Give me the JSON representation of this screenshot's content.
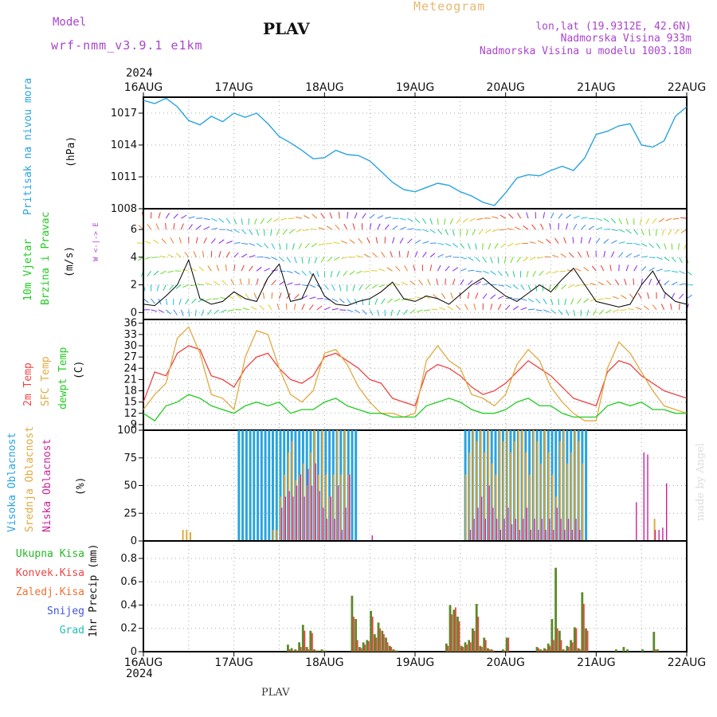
{
  "header": {
    "model_label": "Model",
    "model_name": "wrf-nmm_v3.9.1  e1km",
    "station": "PLAV",
    "title": "Meteogram",
    "lonlat": "lon,lat (19.9312E, 42.6N)",
    "elevation": "Nadmorska Visina 933m",
    "model_elevation": "Nadmorska Visina u modelu 1003.18m",
    "footer_station": "PLAV",
    "credit": "made by Angel"
  },
  "colors": {
    "pressure": "#29a3e0",
    "wind_label": "#22cc22",
    "wind_axis": "#aa44cc",
    "temp2m": "#ee4444",
    "sfc": "#e0aa40",
    "dewpt": "#22cc22",
    "high_cloud": "#29a3e0",
    "mid_cloud": "#e0aa40",
    "low_cloud": "#cc2299",
    "total_rain": "#22bb22",
    "conv_rain": "#ee4444",
    "frozen": "#f07030",
    "snow": "#4455dd",
    "hail": "#22bbbb"
  },
  "chart_data": [
    {
      "type": "line",
      "panel": "pressure",
      "ylabel": "Pritisak na nivou mora",
      "unit": "(hPa)",
      "ylim": [
        1008,
        1018.5
      ],
      "yticks": [
        "1008",
        "1011",
        "1014",
        "1017"
      ],
      "xlim": [
        "2024-08-16 00:00",
        "2024-08-22 00:00"
      ],
      "x_top_labels": [
        "16AUG",
        "17AUG",
        "18AUG",
        "19AUG",
        "20AUG",
        "21AUG",
        "22AUG"
      ],
      "year_label": "2024",
      "x_hours": [
        0,
        3,
        6,
        9,
        12,
        15,
        18,
        21,
        24,
        27,
        30,
        33,
        36,
        39,
        42,
        45,
        48,
        51,
        54,
        57,
        60,
        63,
        66,
        69,
        72,
        75,
        78,
        81,
        84,
        87,
        90,
        93,
        96,
        99,
        102,
        105,
        108,
        111,
        114,
        117,
        120,
        123,
        126,
        129,
        132,
        135,
        138,
        141,
        144
      ],
      "values": [
        1018.2,
        1017.9,
        1018.4,
        1017.6,
        1016.3,
        1015.9,
        1016.7,
        1016.2,
        1017.0,
        1016.6,
        1017.0,
        1016.0,
        1014.8,
        1014.2,
        1013.5,
        1012.7,
        1012.8,
        1013.5,
        1013.1,
        1013.0,
        1012.5,
        1011.5,
        1010.5,
        1009.8,
        1009.6,
        1010.0,
        1010.4,
        1010.2,
        1009.6,
        1009.2,
        1008.6,
        1008.3,
        1009.5,
        1010.9,
        1011.2,
        1011.1,
        1011.6,
        1012.0,
        1011.6,
        1012.8,
        1015.0,
        1015.3,
        1015.8,
        1016.0,
        1014.0,
        1013.8,
        1014.4,
        1016.7,
        1017.6
      ]
    },
    {
      "type": "line",
      "panel": "wind",
      "ylabel": "10m Vjetar",
      "ylabel2": "Brzina i Pravac",
      "unit": "(m/s)",
      "direction_legend": "W <-|-> E",
      "ylim": [
        -0.5,
        7.5
      ],
      "yticks": [
        "0",
        "2",
        "4",
        "6"
      ],
      "x_hours": [
        0,
        3,
        6,
        9,
        12,
        15,
        18,
        21,
        24,
        27,
        30,
        33,
        36,
        39,
        42,
        45,
        48,
        51,
        54,
        57,
        60,
        63,
        66,
        69,
        72,
        75,
        78,
        81,
        84,
        87,
        90,
        93,
        96,
        99,
        102,
        105,
        108,
        111,
        114,
        117,
        120,
        123,
        126,
        129,
        132,
        135,
        138,
        141,
        144
      ],
      "values": [
        0.6,
        0.5,
        1.2,
        2.0,
        3.8,
        1.0,
        0.6,
        0.8,
        1.5,
        1.0,
        0.8,
        2.5,
        3.5,
        0.8,
        1.0,
        2.8,
        1.2,
        0.6,
        0.5,
        0.8,
        1.0,
        1.5,
        2.2,
        1.0,
        0.8,
        1.2,
        1.0,
        0.6,
        1.3,
        2.0,
        2.5,
        1.8,
        1.2,
        0.8,
        1.4,
        2.0,
        1.5,
        2.4,
        3.2,
        2.0,
        0.8,
        0.6,
        0.4,
        0.6,
        2.0,
        3.0,
        1.5,
        0.8,
        0.6
      ]
    },
    {
      "type": "line",
      "panel": "temperature",
      "ylabel": "2m Temp",
      "ylabel2": "SFC Temp",
      "ylabel3": "dewpt Temp",
      "unit": "(C)",
      "ylim": [
        7.5,
        37
      ],
      "yticks": [
        "9",
        "12",
        "15",
        "18",
        "21",
        "24",
        "27",
        "30",
        "33",
        "36"
      ],
      "x_hours": [
        0,
        3,
        6,
        9,
        12,
        15,
        18,
        21,
        24,
        27,
        30,
        33,
        36,
        39,
        42,
        45,
        48,
        51,
        54,
        57,
        60,
        63,
        66,
        69,
        72,
        75,
        78,
        81,
        84,
        87,
        90,
        93,
        96,
        99,
        102,
        105,
        108,
        111,
        114,
        117,
        120,
        123,
        126,
        129,
        132,
        135,
        138,
        141,
        144
      ],
      "series": [
        {
          "name": "2m Temp",
          "values": [
            15,
            23,
            22,
            28,
            30,
            29,
            22,
            21,
            19,
            24,
            27,
            28,
            24,
            21,
            20,
            22,
            27,
            28,
            26,
            24,
            21,
            20,
            16,
            15,
            14,
            23,
            25,
            24,
            22,
            19,
            17,
            18,
            20,
            23,
            26,
            24,
            22,
            19,
            16,
            15,
            14,
            23,
            26,
            25,
            22,
            20,
            18,
            17,
            16
          ]
        },
        {
          "name": "SFC Temp",
          "values": [
            13,
            17,
            20,
            32,
            35,
            28,
            17,
            16,
            13,
            27,
            34,
            33,
            24,
            17,
            15,
            18,
            28,
            29,
            25,
            19,
            15,
            12,
            12,
            11,
            12,
            26,
            30,
            26,
            24,
            17,
            16,
            14,
            17,
            25,
            29,
            26,
            19,
            15,
            12,
            10,
            10,
            24,
            31,
            28,
            23,
            18,
            14,
            13,
            12
          ]
        },
        {
          "name": "dewpt Temp",
          "values": [
            12,
            10,
            14,
            15,
            17,
            16,
            14,
            13,
            12,
            14,
            15,
            14,
            15,
            12,
            13,
            13,
            15,
            16,
            14,
            13,
            12,
            12,
            11,
            11,
            11,
            14,
            15,
            16,
            15,
            13,
            12,
            12,
            13,
            15,
            16,
            14,
            14,
            12,
            11,
            11,
            11,
            14,
            15,
            14,
            15,
            13,
            13,
            12,
            12
          ]
        }
      ]
    },
    {
      "type": "bar",
      "panel": "clouds",
      "ylabel": "Visoka Oblacnost",
      "ylabel2": "Srednja Oblacnost",
      "ylabel3": "Niska  Oblacnost",
      "unit": "(%)",
      "ylim": [
        0,
        100
      ],
      "yticks": [
        "0",
        "25",
        "50",
        "75",
        "100"
      ],
      "x_hours": [
        0,
        3,
        6,
        9,
        10,
        11,
        12,
        13,
        15,
        18,
        21,
        24,
        25,
        26,
        27,
        28,
        29,
        30,
        31,
        32,
        33,
        34,
        35,
        36,
        37,
        38,
        39,
        40,
        41,
        42,
        43,
        44,
        45,
        46,
        47,
        48,
        49,
        50,
        51,
        52,
        53,
        54,
        55,
        56,
        57,
        60,
        66,
        72,
        78,
        84,
        85,
        86,
        87,
        88,
        89,
        90,
        91,
        92,
        93,
        94,
        95,
        96,
        97,
        98,
        99,
        100,
        101,
        102,
        103,
        104,
        105,
        106,
        107,
        108,
        109,
        110,
        111,
        112,
        113,
        114,
        115,
        116,
        117,
        118,
        120,
        126,
        128,
        130,
        132,
        133,
        135,
        136,
        137,
        138,
        141,
        144
      ],
      "series": [
        {
          "name": "Visoka Oblacnost",
          "values": [
            0,
            0,
            0,
            0,
            0,
            0,
            0,
            0,
            0,
            0,
            0,
            0,
            100,
            100,
            100,
            100,
            100,
            100,
            100,
            100,
            100,
            100,
            100,
            100,
            100,
            100,
            100,
            100,
            100,
            100,
            100,
            100,
            100,
            100,
            100,
            100,
            100,
            100,
            100,
            100,
            100,
            100,
            100,
            100,
            0,
            0,
            0,
            0,
            0,
            0,
            100,
            100,
            100,
            100,
            100,
            100,
            100,
            100,
            100,
            100,
            100,
            100,
            100,
            100,
            100,
            100,
            100,
            100,
            100,
            100,
            100,
            100,
            100,
            100,
            100,
            100,
            100,
            100,
            100,
            100,
            100,
            100,
            100,
            0,
            0,
            0,
            0,
            0,
            0,
            0,
            0,
            0,
            0,
            0,
            0,
            0
          ]
        },
        {
          "name": "Srednja Oblacnost",
          "values": [
            0,
            0,
            0,
            0,
            10,
            10,
            8,
            0,
            0,
            0,
            0,
            0,
            0,
            0,
            0,
            0,
            0,
            0,
            0,
            0,
            0,
            10,
            10,
            40,
            60,
            80,
            90,
            55,
            60,
            70,
            50,
            80,
            100,
            60,
            100,
            60,
            40,
            60,
            100,
            60,
            100,
            60,
            0,
            0,
            0,
            0,
            0,
            0,
            0,
            0,
            60,
            80,
            100,
            90,
            100,
            80,
            100,
            70,
            60,
            100,
            90,
            100,
            80,
            90,
            100,
            100,
            80,
            60,
            100,
            90,
            70,
            100,
            80,
            60,
            40,
            90,
            100,
            70,
            80,
            100,
            90,
            70,
            0,
            0,
            0,
            0,
            0,
            0,
            0,
            0,
            20,
            0,
            0,
            0,
            0,
            0
          ]
        },
        {
          "name": "Niska  Oblacnost",
          "values": [
            0,
            0,
            0,
            0,
            0,
            0,
            0,
            0,
            0,
            0,
            0,
            0,
            0,
            0,
            0,
            0,
            0,
            0,
            0,
            0,
            0,
            0,
            0,
            30,
            40,
            45,
            40,
            50,
            60,
            40,
            65,
            50,
            70,
            45,
            30,
            20,
            40,
            20,
            50,
            10,
            30,
            60,
            0,
            0,
            0,
            5,
            0,
            0,
            0,
            0,
            0,
            10,
            20,
            30,
            40,
            20,
            50,
            30,
            20,
            10,
            20,
            30,
            15,
            20,
            10,
            20,
            30,
            10,
            20,
            10,
            20,
            10,
            20,
            10,
            30,
            20,
            10,
            20,
            10,
            20,
            10,
            0,
            0,
            0,
            0,
            0,
            0,
            35,
            80,
            78,
            10,
            10,
            12,
            52,
            0,
            0
          ]
        }
      ]
    },
    {
      "type": "bar",
      "panel": "precip",
      "ylabel": "1hr Precip (mm)",
      "legend": [
        "Ukupna  Kisa",
        "Konvek.Kisa",
        "Zaledj.Kisa",
        "Snijeg",
        "Grad"
      ],
      "ylim": [
        0,
        0.95
      ],
      "yticks": [
        "0",
        "0.2",
        "0.4",
        "0.6",
        "0.8"
      ],
      "x_bottom_labels": [
        "16AUG",
        "17AUG",
        "18AUG",
        "19AUG",
        "20AUG",
        "21AUG",
        "22AUG"
      ],
      "x_hours": [
        38,
        39,
        40,
        41,
        42,
        43,
        44,
        45,
        46,
        47,
        48,
        55,
        56,
        57,
        58,
        59,
        60,
        61,
        62,
        63,
        64,
        65,
        66,
        67,
        80,
        81,
        82,
        83,
        84,
        85,
        86,
        87,
        88,
        89,
        90,
        91,
        92,
        95,
        96,
        104,
        105,
        106,
        107,
        108,
        109,
        110,
        111,
        112,
        113,
        114,
        115,
        116,
        117,
        125,
        127,
        128,
        132,
        135,
        136
      ],
      "series": [
        {
          "name": "Ukupna  Kisa",
          "values": [
            0.06,
            0.03,
            0.02,
            0.08,
            0.23,
            0.04,
            0.18,
            0.02,
            0.01,
            0.02,
            0.01,
            0.48,
            0.28,
            0.04,
            0.08,
            0.1,
            0.35,
            0.15,
            0.25,
            0.18,
            0.12,
            0.05,
            0.02,
            0.01,
            0.07,
            0.4,
            0.36,
            0.3,
            0.05,
            0.08,
            0.1,
            0.2,
            0.41,
            0.05,
            0.12,
            0.03,
            0.02,
            0.02,
            0.12,
            0.04,
            0.02,
            0.03,
            0.07,
            0.28,
            0.72,
            0.18,
            0.02,
            0.05,
            0.1,
            0.21,
            0.03,
            0.51,
            0.2,
            0.02,
            0.04,
            0.02,
            0.02,
            0.17,
            0.02
          ]
        },
        {
          "name": "Konvek.Kisa",
          "values": [
            0.02,
            0.01,
            0.01,
            0.04,
            0.18,
            0.02,
            0.16,
            0.01,
            0,
            0.01,
            0,
            0.3,
            0.1,
            0.03,
            0.06,
            0.09,
            0.3,
            0.12,
            0.2,
            0.15,
            0.08,
            0.04,
            0.01,
            0,
            0.05,
            0.32,
            0.38,
            0.26,
            0.04,
            0.06,
            0.08,
            0.18,
            0.3,
            0.04,
            0.1,
            0.02,
            0.01,
            0.01,
            0.12,
            0.03,
            0.01,
            0.02,
            0.05,
            0.1,
            0.2,
            0.1,
            0.01,
            0.04,
            0.08,
            0.2,
            0.02,
            0.41,
            0.18,
            0,
            0,
            0,
            0,
            0.02,
            0
          ]
        }
      ]
    }
  ]
}
